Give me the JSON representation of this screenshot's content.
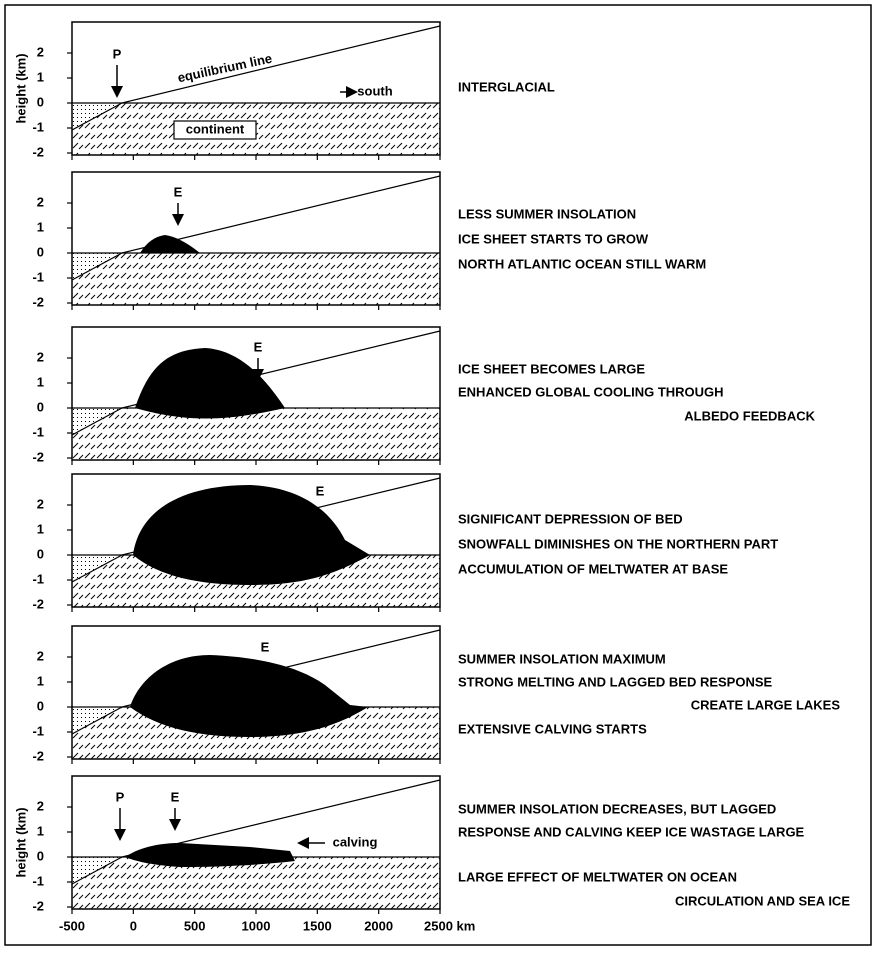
{
  "axes": {
    "y_label": "height (km)",
    "yticks": [
      2,
      1,
      0,
      -1,
      -2
    ],
    "xticks": [
      -500,
      0,
      500,
      1000,
      1500,
      2000,
      {
        "value": 2500,
        "label": "2500 km"
      }
    ]
  },
  "panels": [
    {
      "annotations": [
        "P",
        "equilibrium line",
        "south",
        "continent"
      ],
      "caption": [
        "INTERGLACIAL"
      ]
    },
    {
      "annotations": [
        "E"
      ],
      "caption": [
        "LESS SUMMER INSOLATION",
        "ICE SHEET STARTS TO GROW",
        "NORTH ATLANTIC OCEAN STILL WARM"
      ]
    },
    {
      "annotations": [
        "E"
      ],
      "caption": [
        "ICE SHEET BECOMES LARGE",
        "ENHANCED GLOBAL COOLING THROUGH",
        "ALBEDO FEEDBACK"
      ]
    },
    {
      "annotations": [
        "E"
      ],
      "caption": [
        "SIGNIFICANT DEPRESSION OF BED",
        "SNOWFALL DIMINISHES ON THE NORTHERN PART",
        "ACCUMULATION OF MELTWATER AT BASE"
      ]
    },
    {
      "annotations": [
        "E"
      ],
      "caption": [
        "SUMMER INSOLATION MAXIMUM",
        "STRONG MELTING AND LAGGED BED RESPONSE",
        "CREATE LARGE LAKES",
        "EXTENSIVE CALVING STARTS"
      ]
    },
    {
      "annotations": [
        "P",
        "E",
        "calving"
      ],
      "caption": [
        "SUMMER INSOLATION DECREASES, BUT LAGGED",
        "RESPONSE AND CALVING KEEP ICE WASTAGE LARGE",
        "LARGE EFFECT OF MELTWATER ON OCEAN",
        "CIRCULATION AND SEA ICE"
      ]
    }
  ]
}
